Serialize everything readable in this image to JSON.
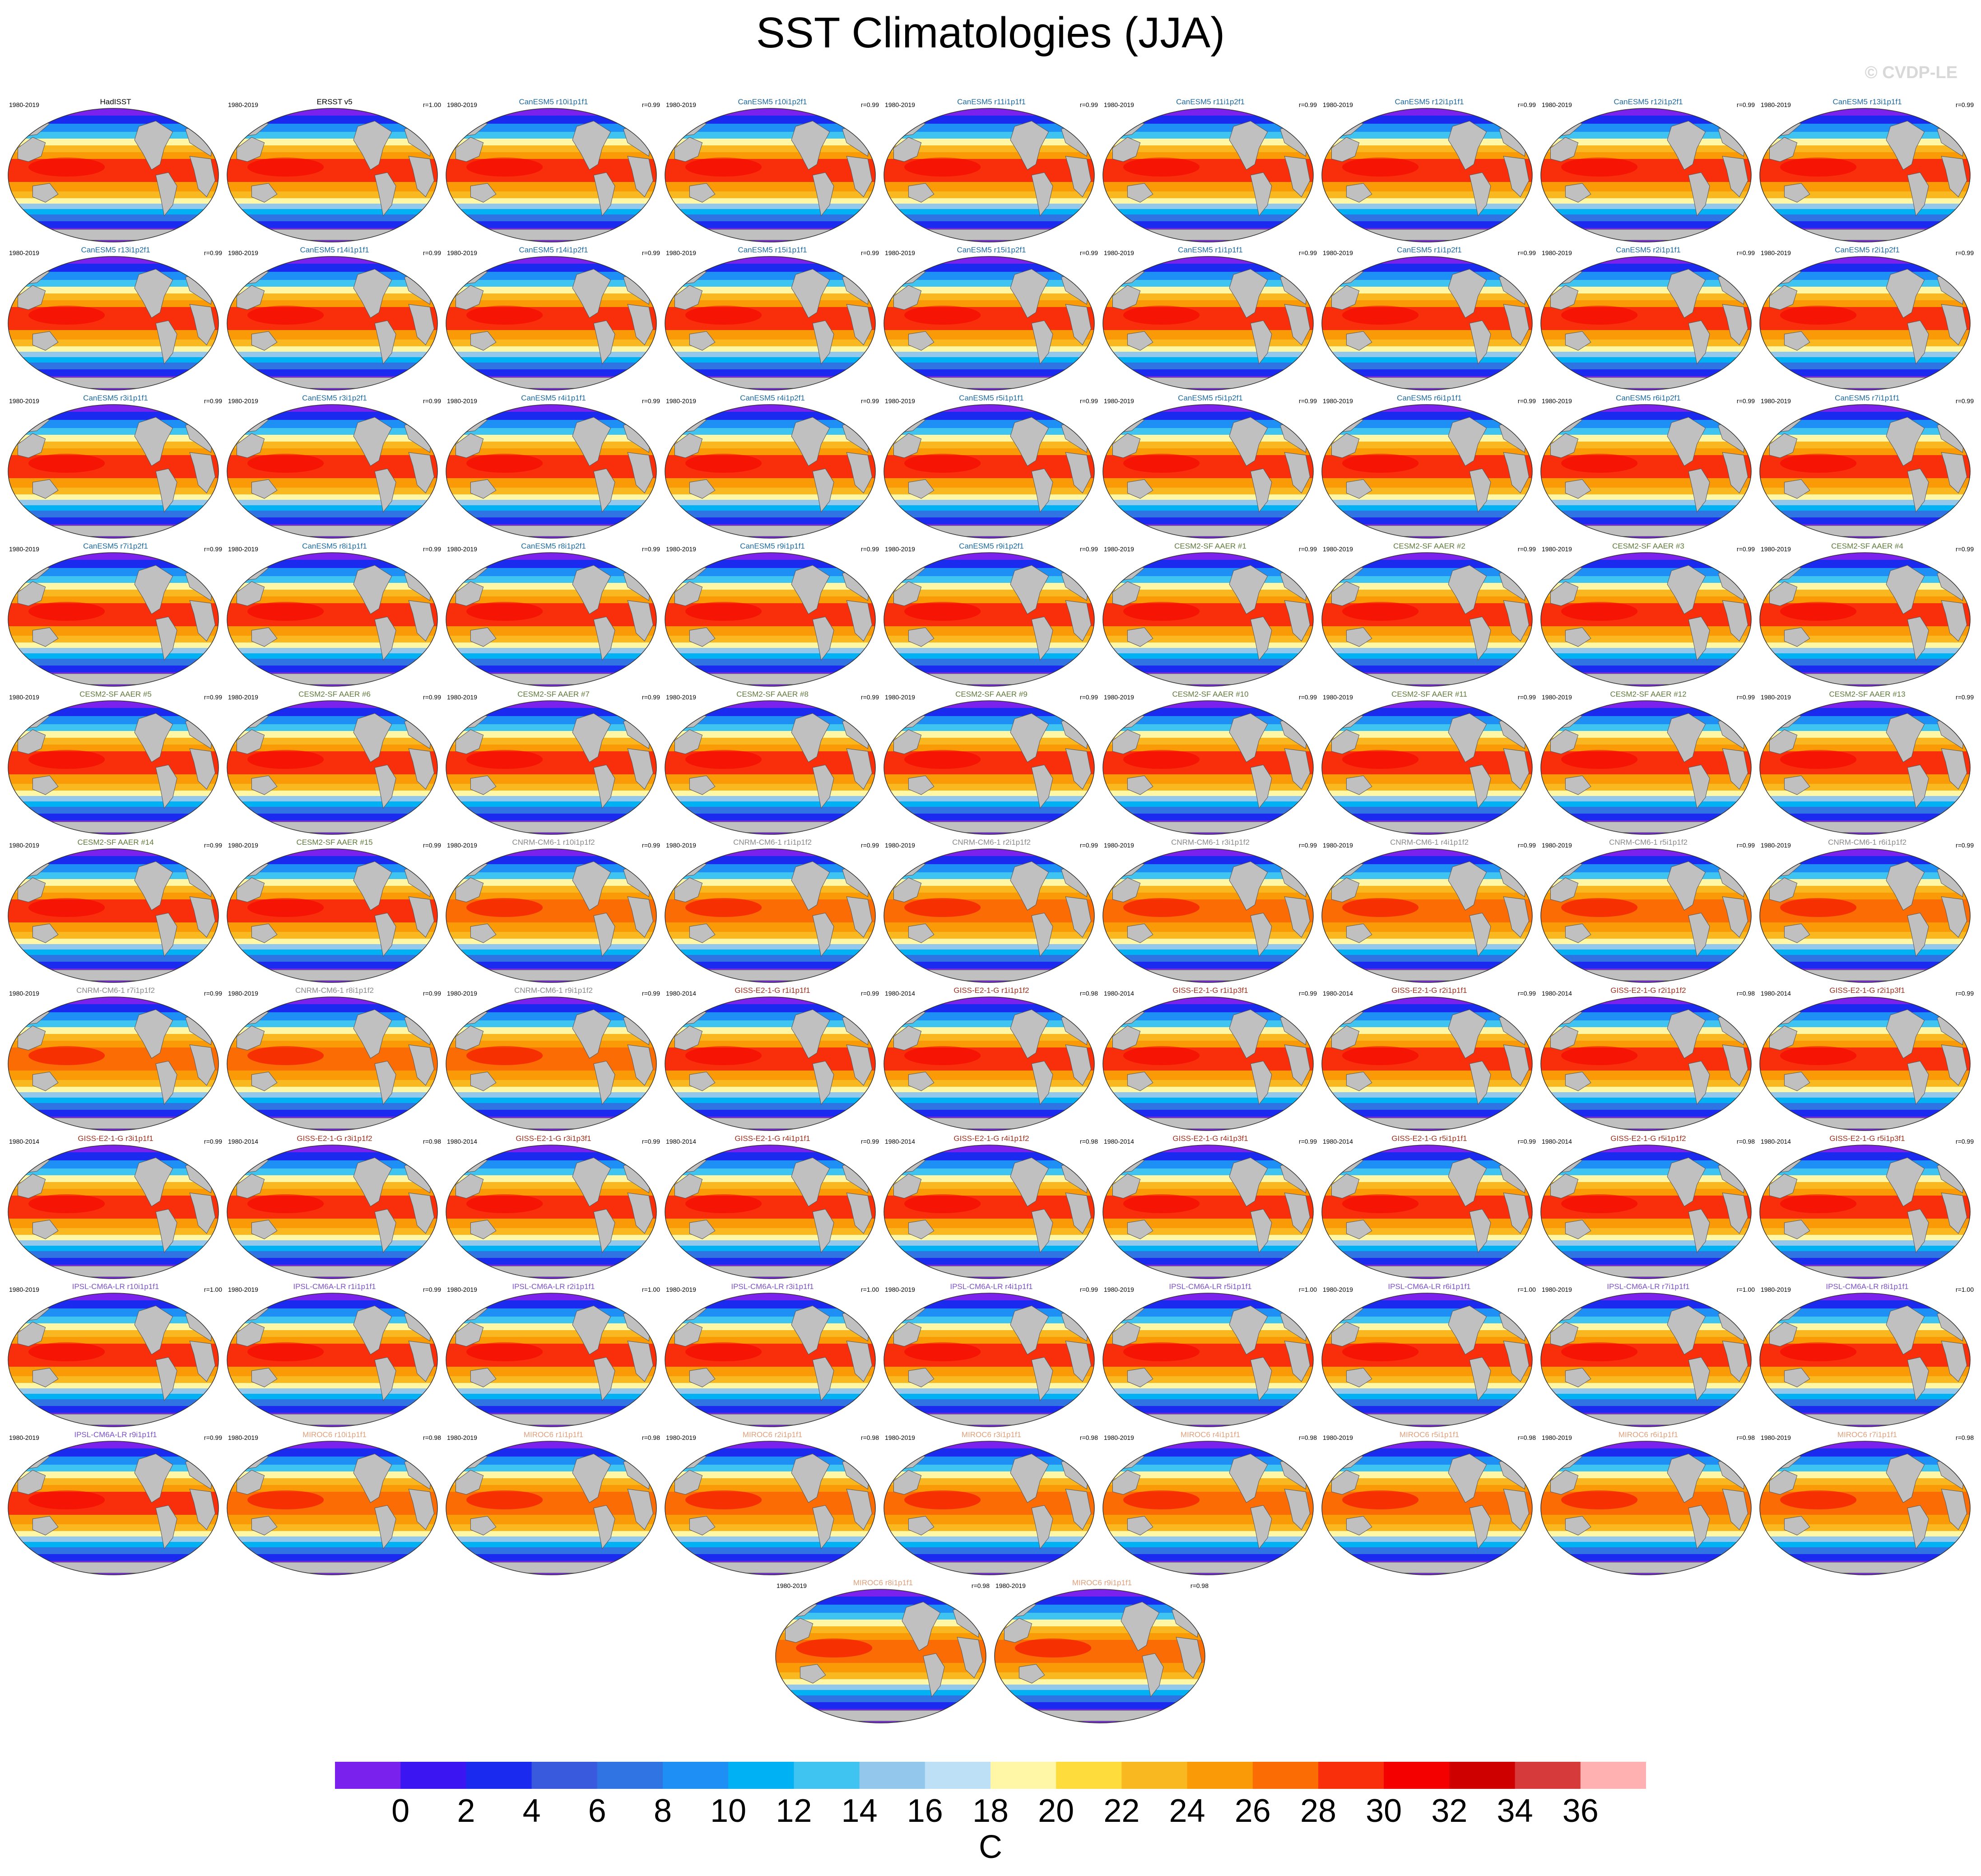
{
  "title": "SST Climatologies (JJA)",
  "credit": "© CVDP-LE",
  "colorbar": {
    "unit": "C",
    "ticks": [
      "0",
      "2",
      "4",
      "6",
      "8",
      "10",
      "12",
      "14",
      "16",
      "18",
      "20",
      "22",
      "24",
      "26",
      "28",
      "30",
      "32",
      "34",
      "36"
    ],
    "colors": [
      "#7b21ee",
      "#3c16f2",
      "#1a2aee",
      "#3a5ade",
      "#2f74e2",
      "#1e90f5",
      "#00b2f4",
      "#3fc3f0",
      "#93c8ec",
      "#bde0f6",
      "#fff6a6",
      "#fddc3c",
      "#fab820",
      "#f99a06",
      "#fb6c04",
      "#f92e0a",
      "#f40000",
      "#cf0000",
      "#d73a3a",
      "#ffb0b0"
    ]
  },
  "group_colors": {
    "obs": "#000000",
    "CanESM5": "#1c6aa0",
    "CESM2": "#5e7a3a",
    "CNRM": "#8a8a8a",
    "GISS": "#a0301c",
    "IPSL": "#7c52c8",
    "MIROC": "#e0a07a"
  },
  "panels": [
    {
      "title": "HadISST",
      "years": "1980-2019",
      "r": "",
      "group": "obs"
    },
    {
      "title": "ERSST v5",
      "years": "1980-2019",
      "r": "r=1.00",
      "group": "obs"
    },
    {
      "title": "CanESM5 r10i1p1f1",
      "years": "1980-2019",
      "r": "r=0.99",
      "group": "CanESM5"
    },
    {
      "title": "CanESM5 r10i1p2f1",
      "years": "1980-2019",
      "r": "r=0.99",
      "group": "CanESM5"
    },
    {
      "title": "CanESM5 r11i1p1f1",
      "years": "1980-2019",
      "r": "r=0.99",
      "group": "CanESM5"
    },
    {
      "title": "CanESM5 r11i1p2f1",
      "years": "1980-2019",
      "r": "r=0.99",
      "group": "CanESM5"
    },
    {
      "title": "CanESM5 r12i1p1f1",
      "years": "1980-2019",
      "r": "r=0.99",
      "group": "CanESM5"
    },
    {
      "title": "CanESM5 r12i1p2f1",
      "years": "1980-2019",
      "r": "r=0.99",
      "group": "CanESM5"
    },
    {
      "title": "CanESM5 r13i1p1f1",
      "years": "1980-2019",
      "r": "r=0.99",
      "group": "CanESM5"
    },
    {
      "title": "CanESM5 r13i1p2f1",
      "years": "1980-2019",
      "r": "r=0.99",
      "group": "CanESM5"
    },
    {
      "title": "CanESM5 r14i1p1f1",
      "years": "1980-2019",
      "r": "r=0.99",
      "group": "CanESM5"
    },
    {
      "title": "CanESM5 r14i1p2f1",
      "years": "1980-2019",
      "r": "r=0.99",
      "group": "CanESM5"
    },
    {
      "title": "CanESM5 r15i1p1f1",
      "years": "1980-2019",
      "r": "r=0.99",
      "group": "CanESM5"
    },
    {
      "title": "CanESM5 r15i1p2f1",
      "years": "1980-2019",
      "r": "r=0.99",
      "group": "CanESM5"
    },
    {
      "title": "CanESM5 r1i1p1f1",
      "years": "1980-2019",
      "r": "r=0.99",
      "group": "CanESM5"
    },
    {
      "title": "CanESM5 r1i1p2f1",
      "years": "1980-2019",
      "r": "r=0.99",
      "group": "CanESM5"
    },
    {
      "title": "CanESM5 r2i1p1f1",
      "years": "1980-2019",
      "r": "r=0.99",
      "group": "CanESM5"
    },
    {
      "title": "CanESM5 r2i1p2f1",
      "years": "1980-2019",
      "r": "r=0.99",
      "group": "CanESM5"
    },
    {
      "title": "CanESM5 r3i1p1f1",
      "years": "1980-2019",
      "r": "r=0.99",
      "group": "CanESM5"
    },
    {
      "title": "CanESM5 r3i1p2f1",
      "years": "1980-2019",
      "r": "r=0.99",
      "group": "CanESM5"
    },
    {
      "title": "CanESM5 r4i1p1f1",
      "years": "1980-2019",
      "r": "r=0.99",
      "group": "CanESM5"
    },
    {
      "title": "CanESM5 r4i1p2f1",
      "years": "1980-2019",
      "r": "r=0.99",
      "group": "CanESM5"
    },
    {
      "title": "CanESM5 r5i1p1f1",
      "years": "1980-2019",
      "r": "r=0.99",
      "group": "CanESM5"
    },
    {
      "title": "CanESM5 r5i1p2f1",
      "years": "1980-2019",
      "r": "r=0.99",
      "group": "CanESM5"
    },
    {
      "title": "CanESM5 r6i1p1f1",
      "years": "1980-2019",
      "r": "r=0.99",
      "group": "CanESM5"
    },
    {
      "title": "CanESM5 r6i1p2f1",
      "years": "1980-2019",
      "r": "r=0.99",
      "group": "CanESM5"
    },
    {
      "title": "CanESM5 r7i1p1f1",
      "years": "1980-2019",
      "r": "r=0.99",
      "group": "CanESM5"
    },
    {
      "title": "CanESM5 r7i1p2f1",
      "years": "1980-2019",
      "r": "r=0.99",
      "group": "CanESM5"
    },
    {
      "title": "CanESM5 r8i1p1f1",
      "years": "1980-2019",
      "r": "r=0.99",
      "group": "CanESM5"
    },
    {
      "title": "CanESM5 r8i1p2f1",
      "years": "1980-2019",
      "r": "r=0.99",
      "group": "CanESM5"
    },
    {
      "title": "CanESM5 r9i1p1f1",
      "years": "1980-2019",
      "r": "r=0.99",
      "group": "CanESM5"
    },
    {
      "title": "CanESM5 r9i1p2f1",
      "years": "1980-2019",
      "r": "r=0.99",
      "group": "CanESM5"
    },
    {
      "title": "CESM2-SF AAER #1",
      "years": "1980-2019",
      "r": "r=0.99",
      "group": "CESM2"
    },
    {
      "title": "CESM2-SF AAER #2",
      "years": "1980-2019",
      "r": "r=0.99",
      "group": "CESM2"
    },
    {
      "title": "CESM2-SF AAER #3",
      "years": "1980-2019",
      "r": "r=0.99",
      "group": "CESM2"
    },
    {
      "title": "CESM2-SF AAER #4",
      "years": "1980-2019",
      "r": "r=0.99",
      "group": "CESM2"
    },
    {
      "title": "CESM2-SF AAER #5",
      "years": "1980-2019",
      "r": "r=0.99",
      "group": "CESM2"
    },
    {
      "title": "CESM2-SF AAER #6",
      "years": "1980-2019",
      "r": "r=0.99",
      "group": "CESM2"
    },
    {
      "title": "CESM2-SF AAER #7",
      "years": "1980-2019",
      "r": "r=0.99",
      "group": "CESM2"
    },
    {
      "title": "CESM2-SF AAER #8",
      "years": "1980-2019",
      "r": "r=0.99",
      "group": "CESM2"
    },
    {
      "title": "CESM2-SF AAER #9",
      "years": "1980-2019",
      "r": "r=0.99",
      "group": "CESM2"
    },
    {
      "title": "CESM2-SF AAER #10",
      "years": "1980-2019",
      "r": "r=0.99",
      "group": "CESM2"
    },
    {
      "title": "CESM2-SF AAER #11",
      "years": "1980-2019",
      "r": "r=0.99",
      "group": "CESM2"
    },
    {
      "title": "CESM2-SF AAER #12",
      "years": "1980-2019",
      "r": "r=0.99",
      "group": "CESM2"
    },
    {
      "title": "CESM2-SF AAER #13",
      "years": "1980-2019",
      "r": "r=0.99",
      "group": "CESM2"
    },
    {
      "title": "CESM2-SF AAER #14",
      "years": "1980-2019",
      "r": "r=0.99",
      "group": "CESM2"
    },
    {
      "title": "CESM2-SF AAER #15",
      "years": "1980-2019",
      "r": "r=0.99",
      "group": "CESM2"
    },
    {
      "title": "CNRM-CM6-1 r10i1p1f2",
      "years": "1980-2019",
      "r": "r=0.99",
      "group": "CNRM"
    },
    {
      "title": "CNRM-CM6-1 r1i1p1f2",
      "years": "1980-2019",
      "r": "r=0.99",
      "group": "CNRM"
    },
    {
      "title": "CNRM-CM6-1 r2i1p1f2",
      "years": "1980-2019",
      "r": "r=0.99",
      "group": "CNRM"
    },
    {
      "title": "CNRM-CM6-1 r3i1p1f2",
      "years": "1980-2019",
      "r": "r=0.99",
      "group": "CNRM"
    },
    {
      "title": "CNRM-CM6-1 r4i1p1f2",
      "years": "1980-2019",
      "r": "r=0.99",
      "group": "CNRM"
    },
    {
      "title": "CNRM-CM6-1 r5i1p1f2",
      "years": "1980-2019",
      "r": "r=0.99",
      "group": "CNRM"
    },
    {
      "title": "CNRM-CM6-1 r6i1p1f2",
      "years": "1980-2019",
      "r": "r=0.99",
      "group": "CNRM"
    },
    {
      "title": "CNRM-CM6-1 r7i1p1f2",
      "years": "1980-2019",
      "r": "r=0.99",
      "group": "CNRM"
    },
    {
      "title": "CNRM-CM6-1 r8i1p1f2",
      "years": "1980-2019",
      "r": "r=0.99",
      "group": "CNRM"
    },
    {
      "title": "CNRM-CM6-1 r9i1p1f2",
      "years": "1980-2019",
      "r": "r=0.99",
      "group": "CNRM"
    },
    {
      "title": "GISS-E2-1-G r1i1p1f1",
      "years": "1980-2014",
      "r": "r=0.99",
      "group": "GISS"
    },
    {
      "title": "GISS-E2-1-G r1i1p1f2",
      "years": "1980-2014",
      "r": "r=0.98",
      "group": "GISS"
    },
    {
      "title": "GISS-E2-1-G r1i1p3f1",
      "years": "1980-2014",
      "r": "r=0.99",
      "group": "GISS"
    },
    {
      "title": "GISS-E2-1-G r2i1p1f1",
      "years": "1980-2014",
      "r": "r=0.99",
      "group": "GISS"
    },
    {
      "title": "GISS-E2-1-G r2i1p1f2",
      "years": "1980-2014",
      "r": "r=0.98",
      "group": "GISS"
    },
    {
      "title": "GISS-E2-1-G r2i1p3f1",
      "years": "1980-2014",
      "r": "r=0.99",
      "group": "GISS"
    },
    {
      "title": "GISS-E2-1-G r3i1p1f1",
      "years": "1980-2014",
      "r": "r=0.99",
      "group": "GISS"
    },
    {
      "title": "GISS-E2-1-G r3i1p1f2",
      "years": "1980-2014",
      "r": "r=0.98",
      "group": "GISS"
    },
    {
      "title": "GISS-E2-1-G r3i1p3f1",
      "years": "1980-2014",
      "r": "r=0.99",
      "group": "GISS"
    },
    {
      "title": "GISS-E2-1-G r4i1p1f1",
      "years": "1980-2014",
      "r": "r=0.99",
      "group": "GISS"
    },
    {
      "title": "GISS-E2-1-G r4i1p1f2",
      "years": "1980-2014",
      "r": "r=0.98",
      "group": "GISS"
    },
    {
      "title": "GISS-E2-1-G r4i1p3f1",
      "years": "1980-2014",
      "r": "r=0.99",
      "group": "GISS"
    },
    {
      "title": "GISS-E2-1-G r5i1p1f1",
      "years": "1980-2014",
      "r": "r=0.99",
      "group": "GISS"
    },
    {
      "title": "GISS-E2-1-G r5i1p1f2",
      "years": "1980-2014",
      "r": "r=0.98",
      "group": "GISS"
    },
    {
      "title": "GISS-E2-1-G r5i1p3f1",
      "years": "1980-2014",
      "r": "r=0.99",
      "group": "GISS"
    },
    {
      "title": "IPSL-CM6A-LR r10i1p1f1",
      "years": "1980-2019",
      "r": "r=1.00",
      "group": "IPSL"
    },
    {
      "title": "IPSL-CM6A-LR r1i1p1f1",
      "years": "1980-2019",
      "r": "r=0.99",
      "group": "IPSL"
    },
    {
      "title": "IPSL-CM6A-LR r2i1p1f1",
      "years": "1980-2019",
      "r": "r=1.00",
      "group": "IPSL"
    },
    {
      "title": "IPSL-CM6A-LR r3i1p1f1",
      "years": "1980-2019",
      "r": "r=1.00",
      "group": "IPSL"
    },
    {
      "title": "IPSL-CM6A-LR r4i1p1f1",
      "years": "1980-2019",
      "r": "r=0.99",
      "group": "IPSL"
    },
    {
      "title": "IPSL-CM6A-LR r5i1p1f1",
      "years": "1980-2019",
      "r": "r=1.00",
      "group": "IPSL"
    },
    {
      "title": "IPSL-CM6A-LR r6i1p1f1",
      "years": "1980-2019",
      "r": "r=1.00",
      "group": "IPSL"
    },
    {
      "title": "IPSL-CM6A-LR r7i1p1f1",
      "years": "1980-2019",
      "r": "r=1.00",
      "group": "IPSL"
    },
    {
      "title": "IPSL-CM6A-LR r8i1p1f1",
      "years": "1980-2019",
      "r": "r=1.00",
      "group": "IPSL"
    },
    {
      "title": "IPSL-CM6A-LR r9i1p1f1",
      "years": "1980-2019",
      "r": "r=0.99",
      "group": "IPSL"
    },
    {
      "title": "MIROC6 r10i1p1f1",
      "years": "1980-2019",
      "r": "r=0.98",
      "group": "MIROC"
    },
    {
      "title": "MIROC6 r1i1p1f1",
      "years": "1980-2019",
      "r": "r=0.98",
      "group": "MIROC"
    },
    {
      "title": "MIROC6 r2i1p1f1",
      "years": "1980-2019",
      "r": "r=0.98",
      "group": "MIROC"
    },
    {
      "title": "MIROC6 r3i1p1f1",
      "years": "1980-2019",
      "r": "r=0.98",
      "group": "MIROC"
    },
    {
      "title": "MIROC6 r4i1p1f1",
      "years": "1980-2019",
      "r": "r=0.98",
      "group": "MIROC"
    },
    {
      "title": "MIROC6 r5i1p1f1",
      "years": "1980-2019",
      "r": "r=0.98",
      "group": "MIROC"
    },
    {
      "title": "MIROC6 r6i1p1f1",
      "years": "1980-2019",
      "r": "r=0.98",
      "group": "MIROC"
    },
    {
      "title": "MIROC6 r7i1p1f1",
      "years": "1980-2019",
      "r": "r=0.98",
      "group": "MIROC"
    },
    {
      "title": "MIROC6 r8i1p1f1",
      "years": "1980-2019",
      "r": "r=0.98",
      "group": "MIROC"
    },
    {
      "title": "MIROC6 r9i1p1f1",
      "years": "1980-2019",
      "r": "r=0.98",
      "group": "MIROC"
    }
  ]
}
